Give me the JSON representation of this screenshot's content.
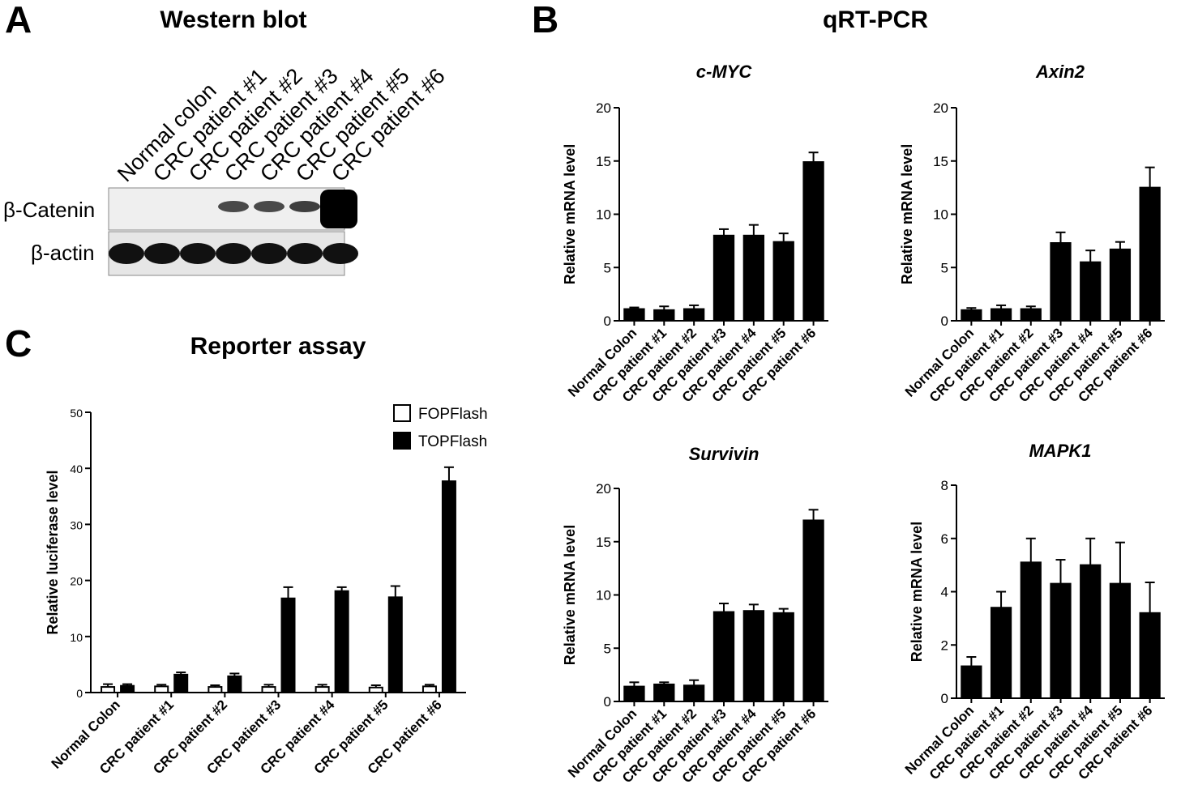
{
  "panels": {
    "A": {
      "letter": "A",
      "title": "Western blot",
      "lanes": [
        "Normal colon",
        "CRC patient #1",
        "CRC patient #2",
        "CRC patient #3",
        "CRC patient #4",
        "CRC patient #5",
        "CRC patient #6"
      ],
      "rows": [
        "β-Catenin",
        "β-actin"
      ]
    },
    "B": {
      "letter": "B",
      "title": "qRT-PCR"
    },
    "C": {
      "letter": "C",
      "title": "Reporter assay"
    }
  },
  "chart_data": [
    {
      "id": "cmyc",
      "type": "bar",
      "title": "c-MYC",
      "ylabel": "Relative mRNA level",
      "xlabel": "",
      "categories": [
        "Normal Colon",
        "CRC patient #1",
        "CRC patient #2",
        "CRC patient #3",
        "CRC patient #4",
        "CRC patient #5",
        "CRC patient #6"
      ],
      "values": [
        1.1,
        1.0,
        1.1,
        8.0,
        8.0,
        7.4,
        14.9
      ],
      "errors": [
        0.15,
        0.35,
        0.35,
        0.6,
        1.0,
        0.8,
        0.9
      ],
      "ylim": [
        0,
        20
      ],
      "yticks": [
        0,
        5,
        10,
        15,
        20
      ],
      "grid": false
    },
    {
      "id": "axin2",
      "type": "bar",
      "title": "Axin2",
      "ylabel": "Relative mRNA level",
      "xlabel": "",
      "categories": [
        "Normal Colon",
        "CRC patient #1",
        "CRC patient #2",
        "CRC patient #3",
        "CRC patient #4",
        "CRC patient #5",
        "CRC patient #6"
      ],
      "values": [
        1.0,
        1.1,
        1.1,
        7.3,
        5.5,
        6.7,
        12.5
      ],
      "errors": [
        0.2,
        0.35,
        0.25,
        1.0,
        1.1,
        0.7,
        1.9
      ],
      "ylim": [
        0,
        20
      ],
      "yticks": [
        0,
        5,
        10,
        15,
        20
      ],
      "grid": false
    },
    {
      "id": "survivin",
      "type": "bar",
      "title": "Survivin",
      "ylabel": "Relative mRNA level",
      "xlabel": "",
      "categories": [
        "Normal Colon",
        "CRC patient #1",
        "CRC patient #2",
        "CRC patient #3",
        "CRC patient #4",
        "CRC patient #5",
        "CRC patient #6"
      ],
      "values": [
        1.4,
        1.6,
        1.5,
        8.4,
        8.5,
        8.3,
        17.0
      ],
      "errors": [
        0.4,
        0.2,
        0.5,
        0.8,
        0.6,
        0.4,
        1.0
      ],
      "ylim": [
        0,
        20
      ],
      "yticks": [
        0,
        5,
        10,
        15,
        20
      ],
      "grid": false
    },
    {
      "id": "mapk1",
      "type": "bar",
      "title": "MAPK1",
      "ylabel": "Relative mRNA level",
      "xlabel": "",
      "categories": [
        "Normal Colon",
        "CRC patient #1",
        "CRC patient #2",
        "CRC patient #3",
        "CRC patient #4",
        "CRC patient #5",
        "CRC patient #6"
      ],
      "values": [
        1.2,
        3.4,
        5.1,
        4.3,
        5.0,
        4.3,
        3.2
      ],
      "errors": [
        0.35,
        0.6,
        0.9,
        0.9,
        1.0,
        1.55,
        1.15
      ],
      "ylim": [
        0,
        8
      ],
      "yticks": [
        0,
        2,
        4,
        6,
        8
      ],
      "grid": false
    },
    {
      "id": "reporter",
      "type": "bar",
      "title": "",
      "ylabel": "Relative luciferase level",
      "xlabel": "",
      "categories": [
        "Normal Colon",
        "CRC patient #1",
        "CRC patient #2",
        "CRC patient #3",
        "CRC patient #4",
        "CRC patient #5",
        "CRC patient #6"
      ],
      "series": [
        {
          "name": "FOPFlash",
          "values": [
            1.0,
            1.1,
            1.0,
            1.0,
            1.0,
            0.9,
            1.1
          ],
          "errors": [
            0.5,
            0.3,
            0.3,
            0.4,
            0.4,
            0.4,
            0.3
          ],
          "fill": "#ffffff"
        },
        {
          "name": "TOPFlash",
          "values": [
            1.2,
            3.2,
            2.9,
            16.8,
            18.1,
            17.0,
            37.7
          ],
          "errors": [
            0.3,
            0.4,
            0.5,
            2.0,
            0.7,
            2.0,
            2.5
          ],
          "fill": "#000000"
        }
      ],
      "ylim": [
        0,
        50
      ],
      "yticks": [
        0,
        10,
        20,
        30,
        40,
        50
      ],
      "legend": "top-right",
      "grid": false
    }
  ]
}
